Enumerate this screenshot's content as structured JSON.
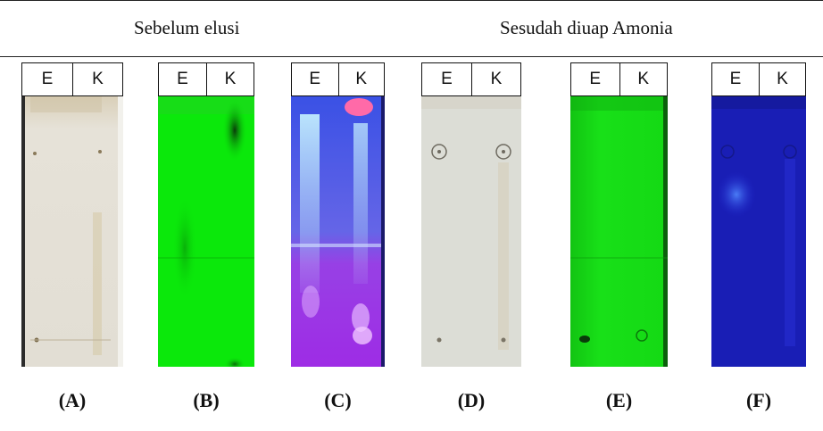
{
  "headings": {
    "before": "Sebelum elusi",
    "after": "Sesudah diuap Amonia"
  },
  "plates": [
    {
      "tab_left": "E",
      "tab_right": "K",
      "caption": "(A)",
      "condition": "daylight, before elution",
      "colors": {
        "base": "#e4e0d6",
        "edge": "#2a2a2a"
      }
    },
    {
      "tab_left": "E",
      "tab_right": "K",
      "caption": "(B)",
      "condition": "UV 254 nm, before elution",
      "colors": {
        "base": "#0bea0b"
      }
    },
    {
      "tab_left": "E",
      "tab_right": "K",
      "caption": "(C)",
      "condition": "UV 366 nm, before elution",
      "colors": {
        "top": "#4a5cf0",
        "bottom": "#b33cf2"
      }
    },
    {
      "tab_left": "E",
      "tab_right": "K",
      "caption": "(D)",
      "condition": "daylight, after ammonia vapour",
      "colors": {
        "base": "#dcddd6"
      }
    },
    {
      "tab_left": "E",
      "tab_right": "K",
      "caption": "(E)",
      "condition": "UV 254 nm, after ammonia vapour",
      "colors": {
        "base": "#14e014"
      }
    },
    {
      "tab_left": "E",
      "tab_right": "K",
      "caption": "(F)",
      "condition": "UV 366 nm, after ammonia vapour",
      "colors": {
        "base": "#1c22c8"
      }
    }
  ]
}
